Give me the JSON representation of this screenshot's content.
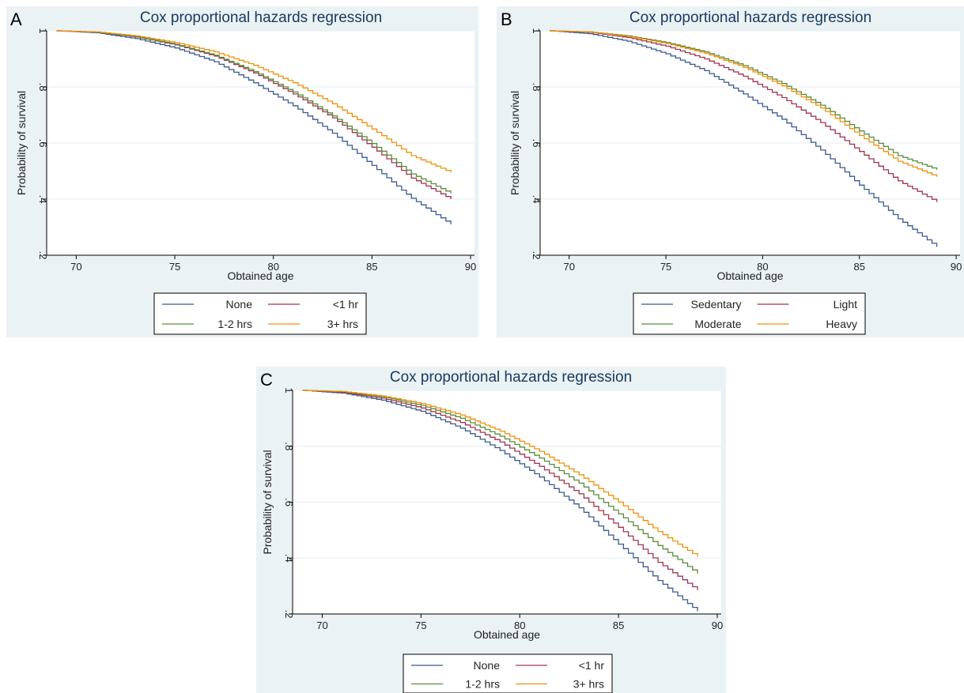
{
  "figure": {
    "panels": [
      "A",
      "B",
      "C"
    ]
  },
  "chart_data": [
    {
      "panel": "A",
      "type": "line",
      "title": "Cox proportional hazards regression",
      "xlabel": "Obtained age",
      "ylabel": "Probability of survival",
      "xlim": [
        68.5,
        90.2
      ],
      "ylim": [
        0.2,
        1.0
      ],
      "xticks": [
        70,
        75,
        80,
        85,
        90
      ],
      "yticks": [
        0.2,
        0.4,
        0.6,
        0.8,
        1.0
      ],
      "ytick_labels": [
        ".2",
        ".4",
        ".6",
        ".8",
        "1"
      ],
      "grid": true,
      "legend_position": "bottom",
      "x": [
        69,
        71,
        73,
        75,
        77,
        79,
        81,
        83,
        85,
        87,
        89
      ],
      "series": [
        {
          "name": "None",
          "color": "#3a5a8c",
          "values": [
            1.0,
            0.993,
            0.972,
            0.939,
            0.89,
            0.815,
            0.733,
            0.635,
            0.52,
            0.403,
            0.31
          ]
        },
        {
          "name": "<1 hr",
          "color": "#a0344f",
          "values": [
            1.0,
            0.995,
            0.978,
            0.95,
            0.91,
            0.85,
            0.775,
            0.69,
            0.585,
            0.475,
            0.4
          ]
        },
        {
          "name": "1-2 hrs",
          "color": "#5b8c3a",
          "values": [
            1.0,
            0.995,
            0.979,
            0.952,
            0.913,
            0.855,
            0.782,
            0.697,
            0.598,
            0.49,
            0.42
          ]
        },
        {
          "name": "3+ hrs",
          "color": "#f0900c",
          "values": [
            1.0,
            0.996,
            0.982,
            0.958,
            0.925,
            0.877,
            0.815,
            0.74,
            0.65,
            0.555,
            0.495
          ]
        }
      ]
    },
    {
      "panel": "B",
      "type": "line",
      "title": "Cox proportional hazards regression",
      "xlabel": "Obtained age",
      "ylabel": "Probability of survival",
      "xlim": [
        68.5,
        90.2
      ],
      "ylim": [
        0.2,
        1.0
      ],
      "xticks": [
        70,
        75,
        80,
        85,
        90
      ],
      "yticks": [
        0.2,
        0.4,
        0.6,
        0.8,
        1.0
      ],
      "ytick_labels": [
        ".2",
        ".4",
        ".6",
        ".8",
        "1"
      ],
      "grid": true,
      "legend_position": "bottom",
      "x": [
        69,
        71,
        73,
        75,
        77,
        79,
        81,
        83,
        85,
        87,
        89
      ],
      "series": [
        {
          "name": "Sedentary",
          "color": "#3a5a8c",
          "values": [
            1.0,
            0.99,
            0.963,
            0.918,
            0.858,
            0.775,
            0.685,
            0.575,
            0.45,
            0.33,
            0.23
          ]
        },
        {
          "name": "Light",
          "color": "#a0344f",
          "values": [
            1.0,
            0.995,
            0.976,
            0.945,
            0.9,
            0.838,
            0.762,
            0.673,
            0.57,
            0.465,
            0.39
          ]
        },
        {
          "name": "Moderate",
          "color": "#5b8c3a",
          "values": [
            1.0,
            0.996,
            0.982,
            0.958,
            0.925,
            0.876,
            0.812,
            0.735,
            0.643,
            0.555,
            0.505
          ]
        },
        {
          "name": "Heavy",
          "color": "#f0900c",
          "values": [
            1.0,
            0.996,
            0.98,
            0.955,
            0.92,
            0.87,
            0.804,
            0.725,
            0.627,
            0.535,
            0.48
          ]
        }
      ]
    },
    {
      "panel": "C",
      "type": "line",
      "title": "Cox proportional hazards regression",
      "xlabel": "Obtained age",
      "ylabel": "Probability of survival",
      "xlim": [
        68.5,
        90.2
      ],
      "ylim": [
        0.2,
        1.0
      ],
      "xticks": [
        70,
        75,
        80,
        85,
        90
      ],
      "yticks": [
        0.2,
        0.4,
        0.6,
        0.8,
        1.0
      ],
      "ytick_labels": [
        ".2",
        ".4",
        ".6",
        ".8",
        "1"
      ],
      "grid": true,
      "legend_position": "bottom",
      "x": [
        69,
        71,
        73,
        75,
        77,
        79,
        81,
        83,
        85,
        87,
        89
      ],
      "series": [
        {
          "name": "None",
          "color": "#3a5a8c",
          "values": [
            1.0,
            0.99,
            0.965,
            0.925,
            0.865,
            0.785,
            0.69,
            0.58,
            0.45,
            0.32,
            0.21
          ]
        },
        {
          "name": "<1 hr",
          "color": "#a0344f",
          "values": [
            1.0,
            0.993,
            0.972,
            0.937,
            0.885,
            0.815,
            0.728,
            0.63,
            0.51,
            0.385,
            0.285
          ]
        },
        {
          "name": "1-2 hrs",
          "color": "#5b8c3a",
          "values": [
            1.0,
            0.995,
            0.977,
            0.946,
            0.9,
            0.836,
            0.758,
            0.668,
            0.558,
            0.445,
            0.345
          ]
        },
        {
          "name": "3+ hrs",
          "color": "#f0900c",
          "values": [
            1.0,
            0.996,
            0.98,
            0.953,
            0.912,
            0.854,
            0.782,
            0.698,
            0.6,
            0.495,
            0.405
          ]
        }
      ]
    }
  ]
}
